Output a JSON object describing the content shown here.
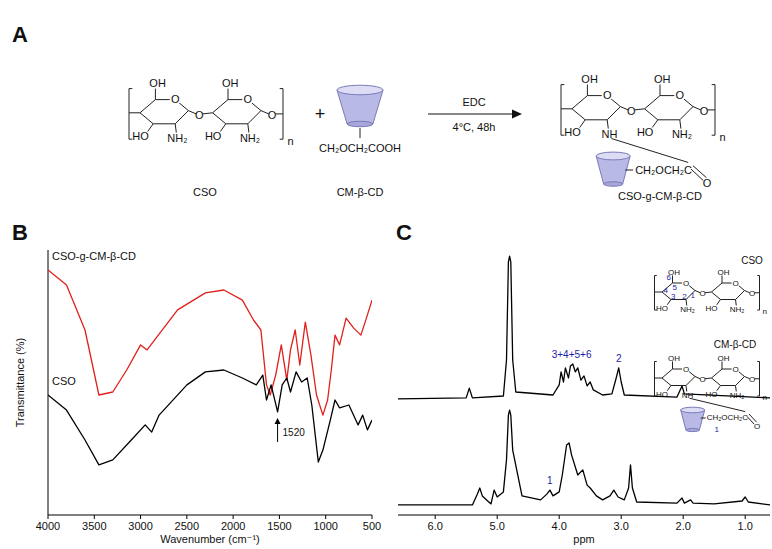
{
  "scheme": {
    "panel_label": "A",
    "reactant_1": "CSO",
    "reactant_2": "CM-β-CD",
    "product": "CSO-g-CM-β-CD",
    "plus": "+",
    "reagent": "EDC",
    "conditions": "4°C, 48h",
    "cd_group": "CH₂OCH₂COOH",
    "atoms": {
      "hydroxyl": "OH",
      "hydroxyl_left": "HO",
      "amine": "NH₂",
      "amide_n": "NH",
      "oxygen": "O",
      "repeat": "n",
      "linker": "CH₂OCH₂C"
    }
  },
  "nmr_insets": {
    "ring_numbers": [
      "1",
      "2",
      "3",
      "4",
      "5",
      "6"
    ],
    "linker_number": "1"
  },
  "chart_data": [
    {
      "type": "line",
      "panel_label": "B",
      "x_label": "Wavenumber (cm⁻¹)",
      "y_label": "Transmittance (%)",
      "xlim": [
        4000,
        500
      ],
      "xticks": [
        4000,
        3500,
        3000,
        2500,
        2000,
        1500,
        1000,
        500
      ],
      "ylim": [
        0,
        100
      ],
      "tick_labels": "x",
      "grid": false,
      "series": [
        {
          "name": "CSO-g-CM-β-CD",
          "color": "#e0201b",
          "x": [
            4000,
            3800,
            3600,
            3450,
            3300,
            3150,
            3000,
            2930,
            2850,
            2600,
            2300,
            2100,
            1900,
            1780,
            1700,
            1640,
            1600,
            1540,
            1480,
            1420,
            1380,
            1330,
            1280,
            1220,
            1160,
            1100,
            1030,
            980,
            940,
            900,
            850,
            780,
            700,
            620,
            560,
            500
          ],
          "values": [
            92.5,
            86.8,
            69.8,
            45.3,
            46.4,
            54.7,
            64.2,
            62.3,
            66.0,
            77.4,
            83.8,
            84.9,
            81.1,
            73.6,
            69.8,
            49.1,
            45.3,
            52.8,
            64.2,
            50.9,
            62.3,
            69.8,
            56.6,
            72.8,
            60.4,
            45.3,
            37.7,
            43.4,
            54.7,
            67.9,
            64.2,
            74.3,
            70.6,
            67.9,
            74.3,
            81.1
          ]
        },
        {
          "name": "CSO",
          "color": "#000000",
          "x": [
            4000,
            3800,
            3600,
            3450,
            3300,
            3100,
            2950,
            2880,
            2800,
            2500,
            2300,
            2100,
            1900,
            1750,
            1680,
            1640,
            1590,
            1520,
            1470,
            1420,
            1380,
            1320,
            1260,
            1200,
            1150,
            1080,
            1030,
            950,
            900,
            850,
            750,
            650,
            600,
            550,
            500
          ],
          "values": [
            45.3,
            39.6,
            28.3,
            18.9,
            20.8,
            28.3,
            34.0,
            31.3,
            37.7,
            49.1,
            54.0,
            54.7,
            51.7,
            49.1,
            52.8,
            43.4,
            49.1,
            38.9,
            49.1,
            51.7,
            46.4,
            54.0,
            50.2,
            51.7,
            41.5,
            20.0,
            24.5,
            35.8,
            43.4,
            40.4,
            41.5,
            34.0,
            37.7,
            32.1,
            35.8
          ],
          "annotations": [
            {
              "x": 1520,
              "label": "1520"
            }
          ]
        }
      ]
    },
    {
      "type": "line",
      "panel_label": "C",
      "x_label": "ppm",
      "xlim": [
        6.6,
        0.6
      ],
      "xticks": [
        {
          "value": 6,
          "label": "6.0"
        },
        {
          "value": 5,
          "label": "5.0"
        },
        {
          "value": 4,
          "label": "4.0"
        },
        {
          "value": 3,
          "label": "3.0"
        },
        {
          "value": 2,
          "label": "2.0"
        },
        {
          "value": 1,
          "label": "1.0"
        }
      ],
      "ylim": [
        0,
        100
      ],
      "tick_labels": "x",
      "grid": false,
      "series": [
        {
          "name": "CSO",
          "color": "#000000",
          "x": [
            6.6,
            5.5,
            5.45,
            5.4,
            4.9,
            4.85,
            4.82,
            4.8,
            4.78,
            4.75,
            4.7,
            4.1,
            4.0,
            3.97,
            3.93,
            3.9,
            3.85,
            3.82,
            3.78,
            3.74,
            3.7,
            3.65,
            3.6,
            3.55,
            3.5,
            3.45,
            3.3,
            3.15,
            3.08,
            3.04,
            3.0,
            2.95,
            2.1,
            2.02,
            1.98,
            0.6
          ],
          "values": [
            43.8,
            44.2,
            47.9,
            44.2,
            44.9,
            58.5,
            95.5,
            97.7,
            95.5,
            58.5,
            46.4,
            45.3,
            49.1,
            54.0,
            50.2,
            55.5,
            51.7,
            56.2,
            57.0,
            54.0,
            55.5,
            50.9,
            52.5,
            48.7,
            50.2,
            47.2,
            45.3,
            45.7,
            51.7,
            55.5,
            50.2,
            45.3,
            44.5,
            48.7,
            45.7,
            44.2
          ],
          "annotations": [
            {
              "x": 3.8,
              "label": "3+4+5+6"
            },
            {
              "x": 3.04,
              "label": "2"
            }
          ]
        },
        {
          "name": "CM-β-CD",
          "color": "#000000",
          "x": [
            6.6,
            5.4,
            5.32,
            5.28,
            5.24,
            5.1,
            5.05,
            5.0,
            4.9,
            4.85,
            4.82,
            4.8,
            4.78,
            4.75,
            4.6,
            4.3,
            4.2,
            4.15,
            4.1,
            4.0,
            3.95,
            3.88,
            3.84,
            3.8,
            3.7,
            3.62,
            3.55,
            3.5,
            3.4,
            3.3,
            3.18,
            3.12,
            3.05,
            2.95,
            2.88,
            2.85,
            2.82,
            2.75,
            2.1,
            2.02,
            1.98,
            1.88,
            1.84,
            1.5,
            1.05,
            1.0,
            0.95,
            0.6
          ],
          "values": [
            3.8,
            3.8,
            7.9,
            10.2,
            7.2,
            4.2,
            9.4,
            6.8,
            8.7,
            20.8,
            37.7,
            39.6,
            37.7,
            24.5,
            7.2,
            5.7,
            7.9,
            9.4,
            7.2,
            8.7,
            15.1,
            26.4,
            27.2,
            22.6,
            15.1,
            17.0,
            11.3,
            10.2,
            7.2,
            5.7,
            7.2,
            9.4,
            6.8,
            5.7,
            10.2,
            18.9,
            10.2,
            4.9,
            4.5,
            6.4,
            4.5,
            5.7,
            4.5,
            4.2,
            5.3,
            6.8,
            4.9,
            3.8
          ],
          "annotations": [
            {
              "x": 4.15,
              "label": "1"
            }
          ]
        }
      ]
    }
  ]
}
